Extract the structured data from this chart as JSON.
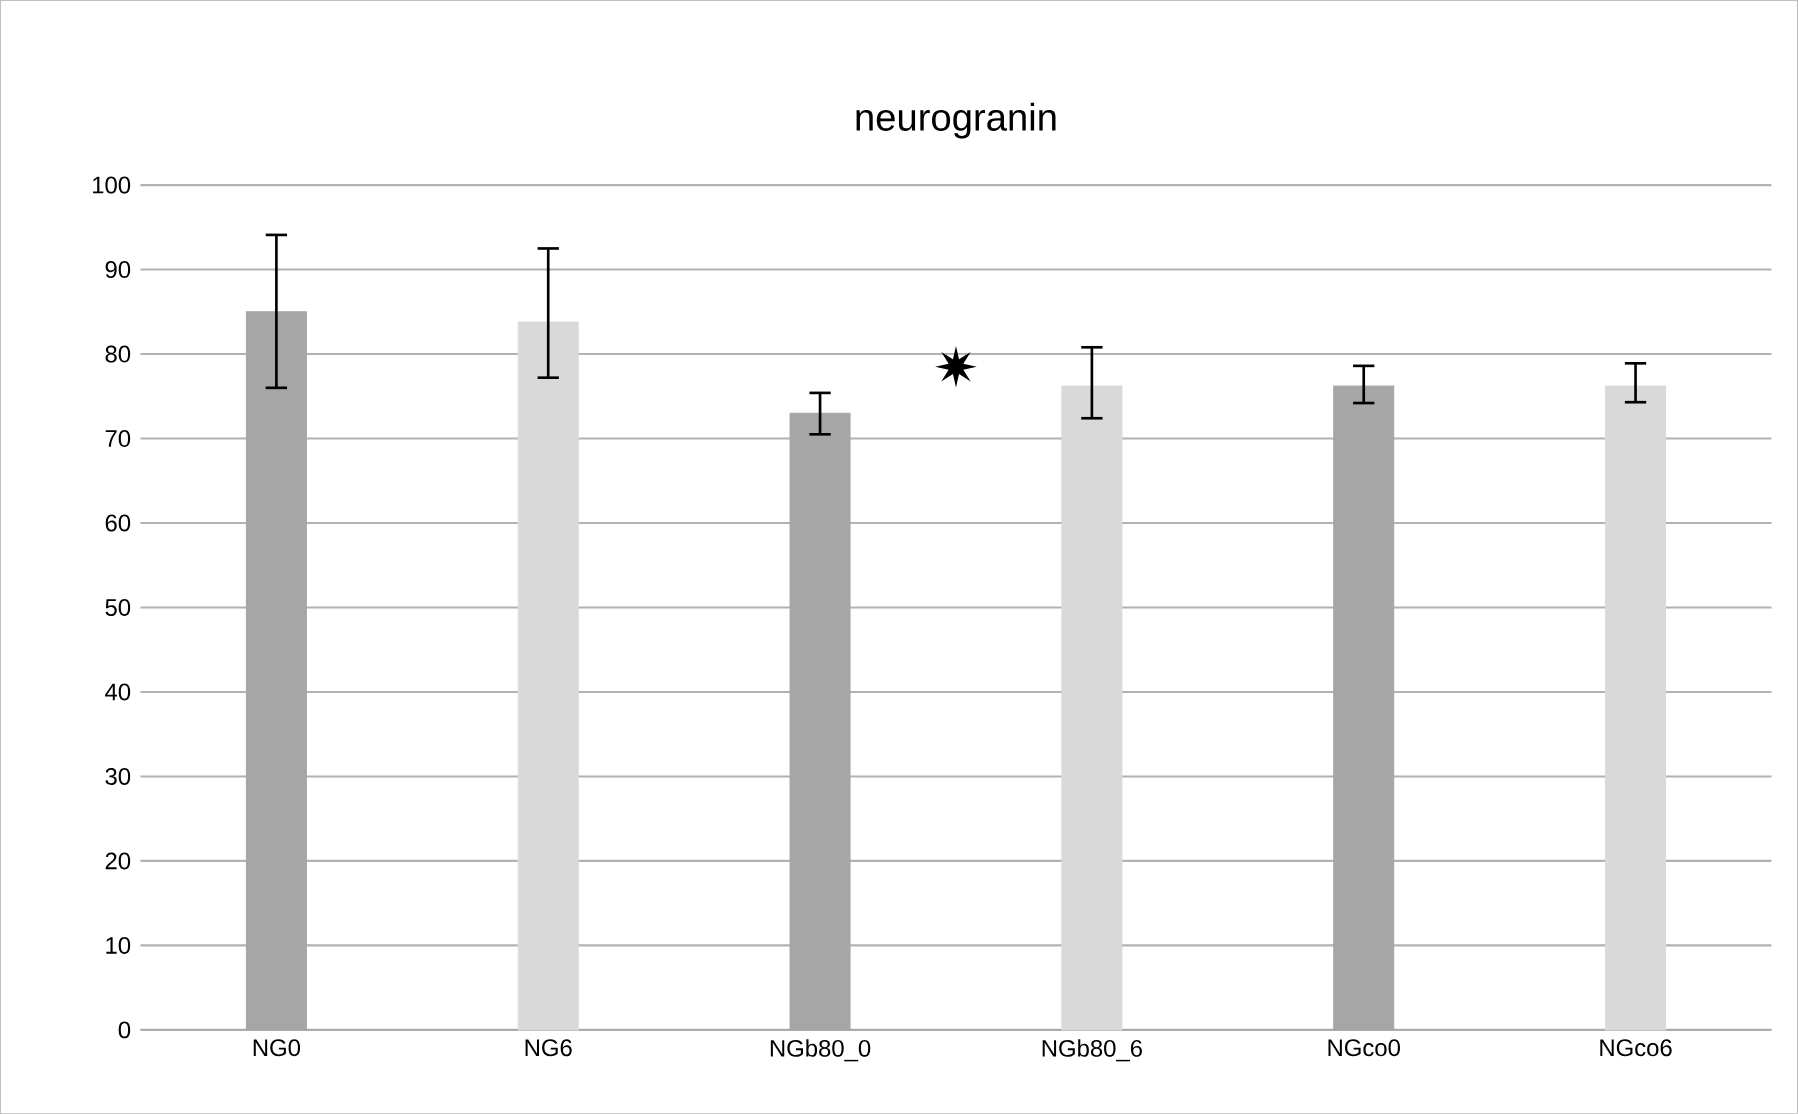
{
  "chart_data": {
    "type": "bar",
    "title": "neurogranin",
    "categories": [
      "NG0",
      "NG6",
      "NGb80_0",
      "NGb80_6",
      "NGco0",
      "NGco6"
    ],
    "values": [
      85,
      83.8,
      73,
      76.2,
      76.2,
      76.2
    ],
    "colors": [
      "#a6a6a6",
      "#d9d9d9",
      "#a6a6a6",
      "#d9d9d9",
      "#a6a6a6",
      "#d9d9d9"
    ],
    "errors": [
      [
        76,
        94.1
      ],
      [
        77.2,
        92.5
      ],
      [
        70.5,
        75.4
      ],
      [
        72.4,
        80.8
      ],
      [
        74.2,
        78.6
      ],
      [
        74.3,
        78.9
      ]
    ],
    "annotations": [
      "✷"
    ],
    "ylim": [
      0,
      100
    ],
    "yticks": [
      0,
      10,
      20,
      30,
      40,
      50,
      60,
      70,
      80,
      90,
      100
    ],
    "grid": "y"
  }
}
